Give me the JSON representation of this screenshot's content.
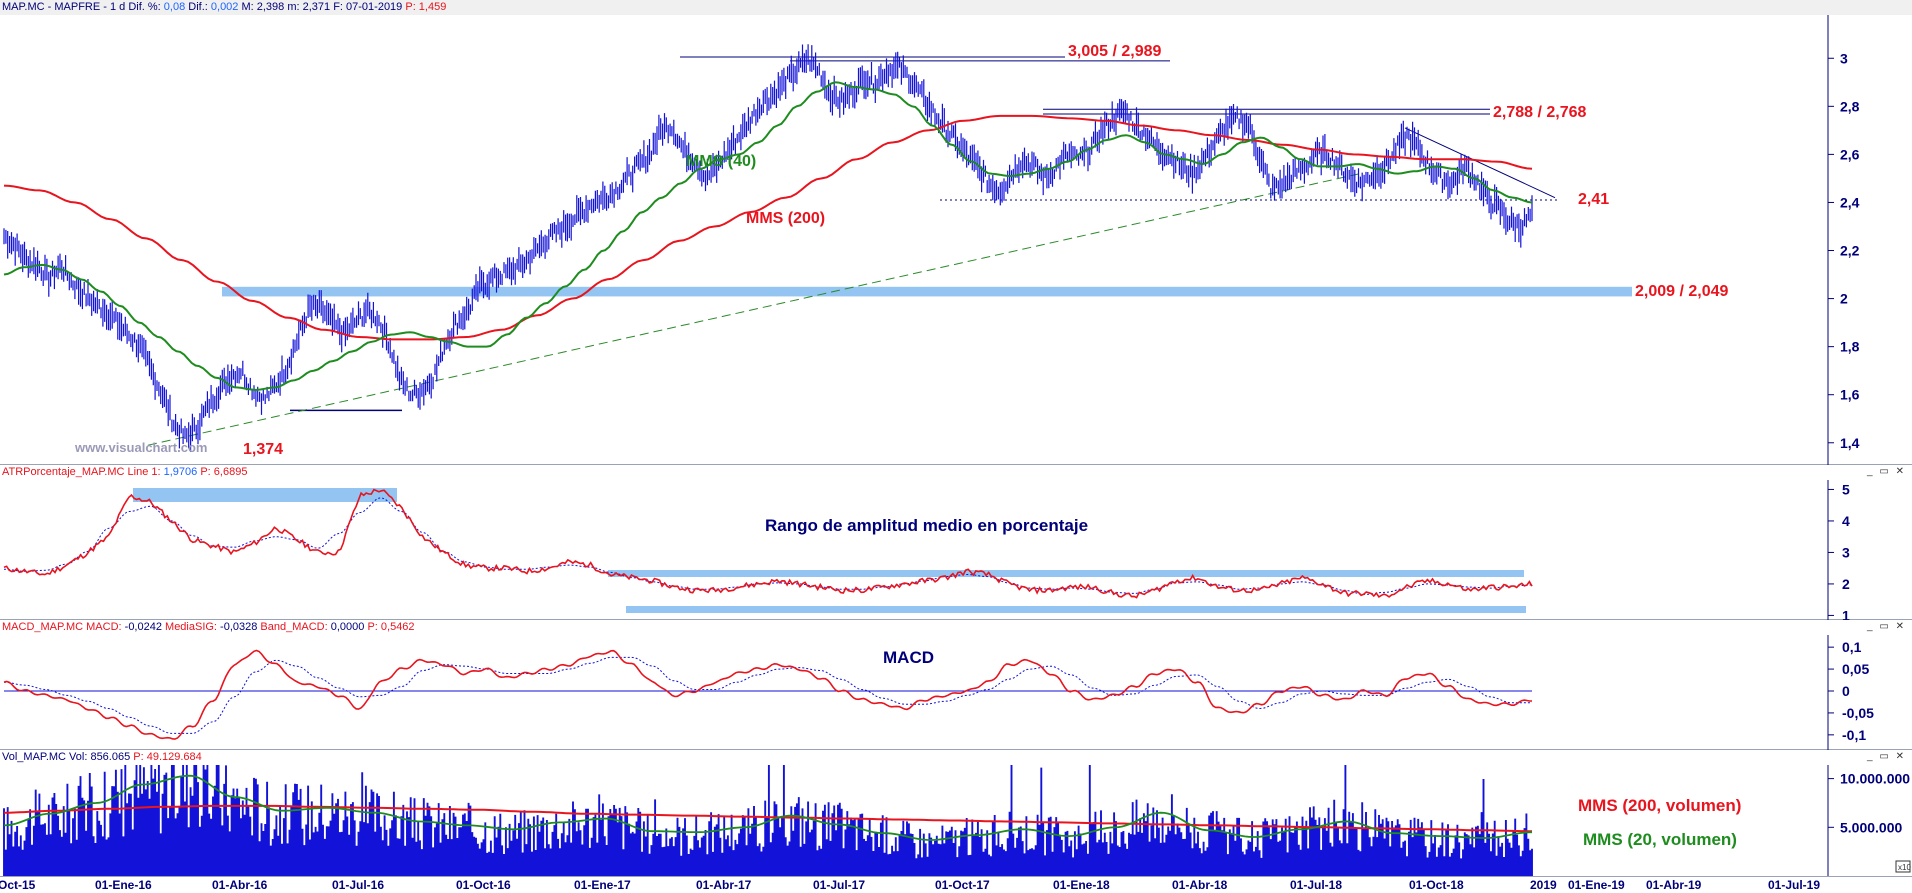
{
  "panels": {
    "price": {
      "header": [
        {
          "t": "MAP.MC - MAPFRE - ",
          "c": "k"
        },
        {
          "t": "1 d ",
          "c": "k"
        },
        {
          "t": "Dif. %: ",
          "c": "k"
        },
        {
          "t": "0,08",
          "c": "b"
        },
        {
          "t": "  Dif.: ",
          "c": "k"
        },
        {
          "t": "0,002",
          "c": "b"
        },
        {
          "t": "  M: 2,398  m: 2,371  F: 07-01-2019  ",
          "c": "k"
        },
        {
          "t": "P: 1,459",
          "c": "r"
        }
      ],
      "y_ticks": [
        "3",
        "2,8",
        "2,6",
        "2,4",
        "2,2",
        "2",
        "1,8",
        "1,6",
        "1,4"
      ],
      "annotations": {
        "top_resistance": "3,005 / 2,989",
        "resistance_2": "2,788 / 2,768",
        "level_241": "2,41",
        "support_zone": "2,009 / 2,049",
        "low": "1,374",
        "mms40": "MMS (40)",
        "mms200": "MMS (200)",
        "watermark": "www.visualchart.com"
      }
    },
    "atr": {
      "header": [
        {
          "t": "ATRPorcentaje_MAP.MC  Line 1: ",
          "c": "r"
        },
        {
          "t": "1,9706",
          "c": "b"
        },
        {
          "t": "  P: 6,6895",
          "c": "r"
        }
      ],
      "y_ticks": [
        "5",
        "4",
        "3",
        "2",
        "1"
      ],
      "title": "Rango de amplitud medio en porcentaje"
    },
    "macd": {
      "header": [
        {
          "t": "MACD_MAP.MC  MACD: ",
          "c": "r"
        },
        {
          "t": "-0,0242",
          "c": "k"
        },
        {
          "t": "  MediaSIG: ",
          "c": "r"
        },
        {
          "t": "-0,0328",
          "c": "k"
        },
        {
          "t": "  Band_MACD: ",
          "c": "r"
        },
        {
          "t": "0,0000",
          "c": "k"
        },
        {
          "t": "  P: 0,5462",
          "c": "r"
        }
      ],
      "y_ticks": [
        "0,1",
        "0,05",
        "0",
        "-0,05",
        "-0,1"
      ],
      "title": "MACD"
    },
    "volume": {
      "header": [
        {
          "t": "Vol_MAP.MC  Vol: 856.065  ",
          "c": "k"
        },
        {
          "t": "P: 49.129.684",
          "c": "r"
        }
      ],
      "y_ticks": [
        "10.000.000",
        "5.000.000"
      ],
      "label_200": "MMS (200, volumen)",
      "label_20": "MMS (20, volumen)",
      "scale_tag": "x10"
    }
  },
  "window_buttons": "_ ▭ ✕",
  "chart_data": {
    "type": "line",
    "x_labels": [
      "Oct-15",
      "01-Ene-16",
      "01-Abr-16",
      "01-Jul-16",
      "01-Oct-16",
      "01-Ene-17",
      "01-Abr-17",
      "01-Jul-17",
      "01-Oct-17",
      "01-Ene-18",
      "01-Abr-18",
      "01-Jul-18",
      "01-Oct-18",
      "2019",
      "01-Ene-19",
      "01-Abr-19",
      "01-Jul-19"
    ],
    "price_ylim": [
      1.32,
      3.18
    ],
    "atr_ylim": [
      0.95,
      5.3
    ],
    "macd_ylim": [
      -0.13,
      0.13
    ],
    "volume_ylim": [
      0,
      11500000
    ],
    "price_close_weekly": [
      2.26,
      2.22,
      2.16,
      2.14,
      2.08,
      2.14,
      2.07,
      2.02,
      1.98,
      1.95,
      1.9,
      1.85,
      1.8,
      1.7,
      1.6,
      1.48,
      1.42,
      1.46,
      1.55,
      1.62,
      1.68,
      1.7,
      1.62,
      1.58,
      1.64,
      1.72,
      1.84,
      1.96,
      1.96,
      1.9,
      1.85,
      1.9,
      1.95,
      1.92,
      1.82,
      1.66,
      1.6,
      1.62,
      1.68,
      1.82,
      1.9,
      1.95,
      2.05,
      2.08,
      2.1,
      2.12,
      2.15,
      2.2,
      2.25,
      2.28,
      2.32,
      2.36,
      2.4,
      2.42,
      2.45,
      2.5,
      2.55,
      2.6,
      2.7,
      2.72,
      2.62,
      2.58,
      2.5,
      2.55,
      2.62,
      2.68,
      2.75,
      2.82,
      2.85,
      2.9,
      2.95,
      3.0,
      2.95,
      2.85,
      2.82,
      2.86,
      2.92,
      2.9,
      2.95,
      2.96,
      2.92,
      2.85,
      2.78,
      2.72,
      2.66,
      2.6,
      2.55,
      2.48,
      2.45,
      2.52,
      2.58,
      2.55,
      2.5,
      2.55,
      2.6,
      2.58,
      2.62,
      2.7,
      2.75,
      2.78,
      2.72,
      2.68,
      2.62,
      2.6,
      2.55,
      2.52,
      2.58,
      2.65,
      2.72,
      2.75,
      2.72,
      2.58,
      2.45,
      2.48,
      2.52,
      2.55,
      2.6,
      2.6,
      2.55,
      2.5,
      2.48,
      2.52,
      2.55,
      2.62,
      2.68,
      2.62,
      2.55,
      2.5,
      2.48,
      2.55,
      2.5,
      2.42,
      2.38,
      2.32,
      2.3,
      2.35
    ],
    "mms40": [
      2.1,
      2.13,
      2.14,
      2.12,
      2.08,
      2.03,
      1.97,
      1.9,
      1.84,
      1.78,
      1.72,
      1.67,
      1.63,
      1.62,
      1.63,
      1.66,
      1.7,
      1.74,
      1.78,
      1.82,
      1.85,
      1.86,
      1.84,
      1.82,
      1.8,
      1.8,
      1.85,
      1.92,
      1.98,
      2.05,
      2.12,
      2.2,
      2.28,
      2.36,
      2.42,
      2.48,
      2.54,
      2.58,
      2.6,
      2.65,
      2.72,
      2.8,
      2.86,
      2.9,
      2.88,
      2.87,
      2.85,
      2.8,
      2.72,
      2.64,
      2.57,
      2.52,
      2.51,
      2.52,
      2.54,
      2.57,
      2.62,
      2.66,
      2.68,
      2.65,
      2.6,
      2.58,
      2.56,
      2.6,
      2.65,
      2.67,
      2.63,
      2.58,
      2.55,
      2.55,
      2.56,
      2.54,
      2.52,
      2.53,
      2.55,
      2.54,
      2.5,
      2.45,
      2.42,
      2.4
    ],
    "mms200": [
      2.47,
      2.45,
      2.4,
      2.33,
      2.25,
      2.16,
      2.07,
      1.99,
      1.92,
      1.87,
      1.84,
      1.83,
      1.83,
      1.84,
      1.87,
      1.93,
      2.0,
      2.08,
      2.16,
      2.24,
      2.3,
      2.36,
      2.42,
      2.5,
      2.58,
      2.65,
      2.7,
      2.74,
      2.76,
      2.76,
      2.75,
      2.74,
      2.72,
      2.7,
      2.68,
      2.66,
      2.64,
      2.62,
      2.6,
      2.59,
      2.58,
      2.58,
      2.57,
      2.54
    ],
    "atr_values": [
      2.5,
      2.4,
      2.3,
      2.6,
      3.0,
      3.5,
      4.8,
      4.6,
      4.0,
      3.4,
      3.2,
      3.0,
      3.3,
      3.8,
      3.4,
      3.0,
      3.0,
      4.8,
      5.0,
      4.4,
      3.5,
      3.0,
      2.6,
      2.5,
      2.5,
      2.4,
      2.5,
      2.7,
      2.6,
      2.3,
      2.2,
      2.1,
      1.9,
      1.8,
      1.8,
      1.9,
      2.0,
      2.1,
      2.0,
      1.9,
      1.8,
      1.8,
      1.9,
      2.0,
      2.1,
      2.2,
      2.4,
      2.3,
      2.0,
      1.8,
      1.8,
      1.9,
      1.9,
      1.7,
      1.6,
      1.8,
      2.1,
      2.2,
      1.9,
      1.8,
      1.8,
      2.0,
      2.2,
      2.0,
      1.7,
      1.7,
      1.6,
      1.9,
      2.1,
      2.0,
      1.8,
      1.9,
      1.9,
      2.0
    ],
    "macd_values": [
      0.02,
      0.0,
      -0.01,
      -0.02,
      -0.04,
      -0.06,
      -0.08,
      -0.1,
      -0.11,
      -0.08,
      -0.02,
      0.06,
      0.09,
      0.06,
      0.02,
      0.01,
      -0.01,
      -0.04,
      0.02,
      0.05,
      0.07,
      0.06,
      0.04,
      0.05,
      0.03,
      0.04,
      0.05,
      0.06,
      0.08,
      0.09,
      0.06,
      0.02,
      -0.01,
      0.0,
      0.02,
      0.04,
      0.05,
      0.06,
      0.05,
      0.03,
      0.0,
      -0.02,
      -0.03,
      -0.04,
      -0.02,
      -0.01,
      0.0,
      0.02,
      0.06,
      0.07,
      0.04,
      0.0,
      -0.02,
      -0.01,
      0.01,
      0.04,
      0.05,
      0.02,
      -0.04,
      -0.05,
      -0.03,
      0.0,
      0.01,
      -0.01,
      -0.02,
      0.0,
      -0.01,
      0.03,
      0.04,
      0.01,
      -0.02,
      -0.03,
      -0.03,
      -0.02
    ],
    "volume_mms200": [
      6.5,
      6.7,
      6.9,
      7.1,
      7.2,
      7.2,
      7.1,
      7.0,
      6.9,
      6.8,
      6.6,
      6.4,
      6.3,
      6.2,
      6.1,
      6.0,
      5.9,
      5.8,
      5.7,
      5.6,
      5.5,
      5.4,
      5.3,
      5.2,
      5.1,
      5.0,
      4.9,
      4.8,
      4.7,
      4.6
    ],
    "volume_mms20": [
      5.2,
      6.4,
      7.5,
      9.4,
      10.3,
      8.1,
      6.7,
      7.0,
      6.5,
      5.6,
      5.2,
      4.8,
      5.5,
      5.9,
      4.6,
      4.5,
      5.0,
      6.2,
      5.3,
      4.4,
      3.7,
      4.2,
      4.8,
      4.1,
      5.0,
      6.5,
      4.7,
      4.0,
      4.8,
      5.6,
      4.4,
      4.1,
      3.9,
      4.5
    ]
  }
}
